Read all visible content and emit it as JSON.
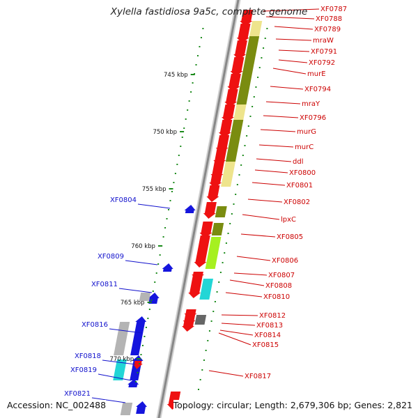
{
  "title": "Xylella fastidiosa 9a5c, complete genome",
  "footer": {
    "accession": "Accession: NC_002488",
    "stats": "Topology: circular; Length: 2,679,306 bp; Genes: 2,821"
  },
  "colors": {
    "forward_gene": "#ee1111",
    "reverse_gene": "#1515dd",
    "label_forward": "#cc0000",
    "label_reverse": "#1010cc",
    "cog_olive": "#7a8c10",
    "cog_pale": "#eee48c",
    "cog_lime": "#a6f020",
    "cog_cyan": "#22d6d6",
    "cog_gray": "#b4b4b4",
    "tick_green": "#1a8a1a",
    "backbone": "#888888"
  },
  "ticks": [
    {
      "label": "745 kbp"
    },
    {
      "label": "750 kbp"
    },
    {
      "label": "755 kbp"
    },
    {
      "label": "760 kbp"
    },
    {
      "label": "765 kbp"
    },
    {
      "label": "770 kbp"
    }
  ],
  "forward_labels": [
    "XF0787",
    "XF0788",
    "XF0789",
    "mraW",
    "XF0791",
    "XF0792",
    "murE",
    "XF0794",
    "mraY",
    "XF0796",
    "murG",
    "murC",
    "ddl",
    "XF0800",
    "XF0801",
    "XF0802",
    "lpxC",
    "XF0805",
    "XF0806",
    "XF0807",
    "XF0808",
    "XF0810",
    "XF0812",
    "XF0813",
    "XF0814",
    "XF0815",
    "XF0817"
  ],
  "reverse_labels": [
    "XF0804",
    "XF0809",
    "XF0811",
    "XF0816",
    "XF0818",
    "XF0819",
    "XF0821"
  ]
}
